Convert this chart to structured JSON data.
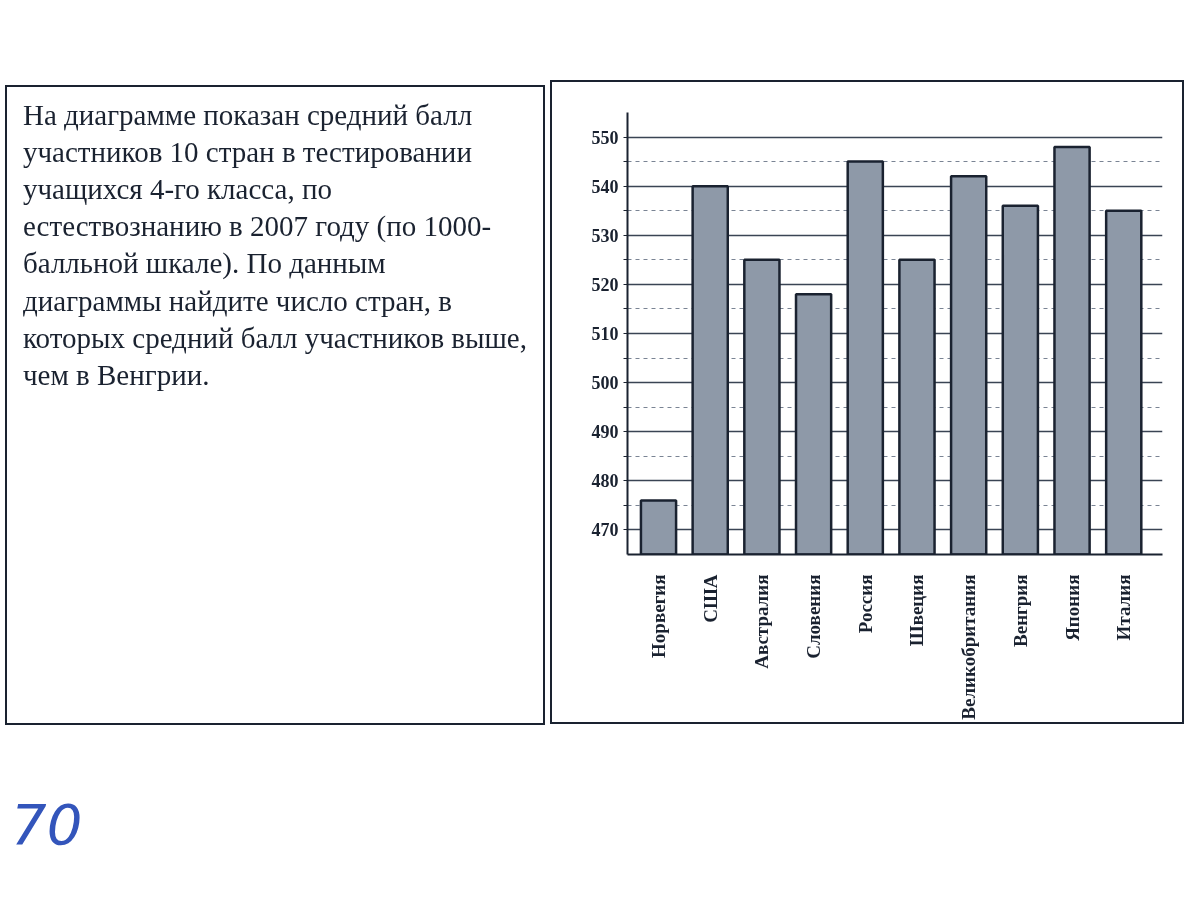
{
  "chart_data": {
    "type": "bar",
    "title": "На диаграмме показан средний балл участников 10 стран в тестировании учащихся 4-го класса, по естествознанию в 2007 году (по 1000-балльной шкале). По данным диаграммы найдите число стран, в которых средний балл участников выше, чем в Венгрии.",
    "categories": [
      "Норвегия",
      "США",
      "Австралия",
      "Словения",
      "Россия",
      "Швеция",
      "Великобритания",
      "Венгрия",
      "Япония",
      "Италия"
    ],
    "values": [
      476,
      540,
      525,
      518,
      545,
      525,
      542,
      536,
      548,
      535
    ],
    "color": "#8e99a8",
    "ylim": [
      465,
      555
    ],
    "yticks": [
      470,
      {
        "value": 475,
        "label": null
      },
      480,
      {
        "value": 485,
        "label": null
      },
      490,
      {
        "value": 495,
        "label": null
      },
      500,
      {
        "value": 505,
        "label": null
      },
      510,
      {
        "value": 515,
        "label": null
      },
      520,
      {
        "value": 525,
        "label": null
      },
      530,
      {
        "value": 535,
        "label": null
      },
      540,
      {
        "value": 545,
        "label": null
      },
      550
    ],
    "grid": "y",
    "annotations": [
      "70"
    ]
  }
}
